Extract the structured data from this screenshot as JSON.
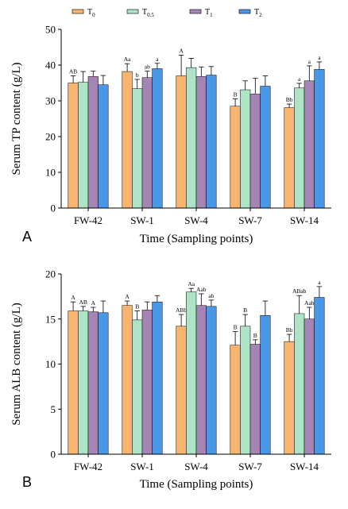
{
  "legend": [
    {
      "base": "T",
      "sub": "0",
      "color": "#f9b46f"
    },
    {
      "base": "T",
      "sub": "0.5",
      "color": "#aee3c6"
    },
    {
      "base": "T",
      "sub": "1",
      "color": "#a585b3"
    },
    {
      "base": "T",
      "sub": "2",
      "color": "#4a97e6"
    }
  ],
  "chart_data": [
    {
      "type": "bar",
      "panel_label": "A",
      "ylabel": "Serum TP content (g/L)",
      "xlabel": "Time (Sampling points)",
      "ylim": [
        0,
        50
      ],
      "yticks": [
        0,
        10,
        20,
        30,
        40,
        50
      ],
      "categories": [
        "FW-42",
        "SW-1",
        "SW-4",
        "SW-7",
        "SW-14"
      ],
      "series": [
        {
          "name": "T0",
          "values": [
            35.0,
            38.2,
            37.0,
            28.5,
            28.1
          ],
          "errors": [
            2.0,
            2.2,
            5.8,
            2.1,
            1.0
          ],
          "labels": [
            "AB",
            "Aa",
            "A",
            "B",
            "Bb"
          ]
        },
        {
          "name": "T0.5",
          "values": [
            35.2,
            33.4,
            39.3,
            33.1,
            33.6
          ],
          "errors": [
            3.0,
            2.6,
            2.6,
            2.5,
            1.3
          ],
          "labels": [
            "",
            "b",
            "",
            "",
            "a"
          ]
        },
        {
          "name": "T1",
          "values": [
            36.8,
            36.5,
            36.8,
            31.9,
            35.6
          ],
          "errors": [
            1.5,
            1.8,
            2.7,
            4.4,
            4.2
          ],
          "labels": [
            "",
            "ab",
            "",
            "",
            "a"
          ]
        },
        {
          "name": "T2",
          "values": [
            34.5,
            39.0,
            37.2,
            34.1,
            38.8
          ],
          "errors": [
            2.6,
            1.5,
            2.4,
            2.9,
            2.1
          ],
          "labels": [
            "",
            "a",
            "",
            "",
            "a"
          ]
        }
      ]
    },
    {
      "type": "bar",
      "panel_label": "B",
      "ylabel": "Serum ALB content (g/L)",
      "xlabel": "Time (Sampling points)",
      "ylim": [
        0,
        20
      ],
      "yticks": [
        0,
        5,
        10,
        15,
        20
      ],
      "categories": [
        "FW-42",
        "SW-1",
        "SW-4",
        "SW-7",
        "SW-14"
      ],
      "series": [
        {
          "name": "T0",
          "values": [
            15.9,
            16.5,
            14.2,
            12.1,
            12.5
          ],
          "errors": [
            1.0,
            0.5,
            1.3,
            1.5,
            0.8
          ],
          "labels": [
            "A",
            "A",
            "ABb",
            "B",
            "Bb"
          ]
        },
        {
          "name": "T0.5",
          "values": [
            15.9,
            14.9,
            18.0,
            14.2,
            15.6
          ],
          "errors": [
            0.5,
            1.0,
            0.4,
            1.3,
            2.0
          ],
          "labels": [
            "AB",
            "B",
            "Aa",
            "B",
            "ABab"
          ]
        },
        {
          "name": "T1",
          "values": [
            15.8,
            16.0,
            16.5,
            12.2,
            15.0
          ],
          "errors": [
            0.5,
            0.9,
            1.3,
            0.5,
            1.3
          ],
          "labels": [
            "A",
            "",
            "Aab",
            "B",
            "Aab"
          ]
        },
        {
          "name": "T2",
          "values": [
            15.7,
            16.9,
            16.4,
            15.4,
            17.4
          ],
          "errors": [
            1.3,
            0.7,
            0.7,
            1.6,
            1.2
          ],
          "labels": [
            "",
            "",
            "ab",
            "",
            "a"
          ]
        }
      ]
    }
  ]
}
